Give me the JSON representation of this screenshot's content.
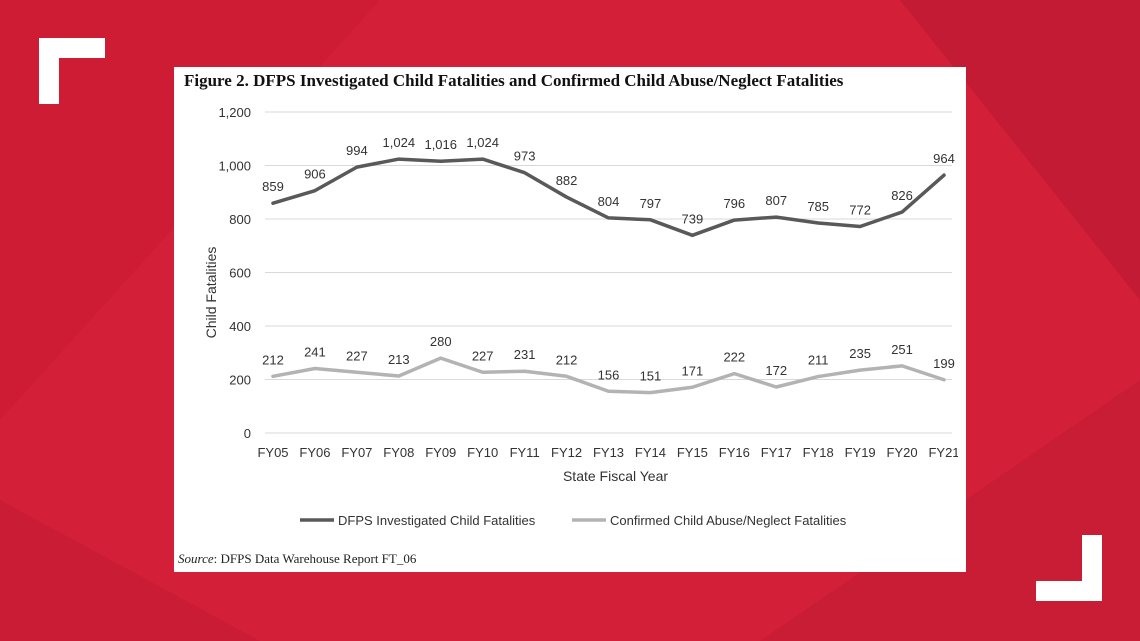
{
  "colors": {
    "background": "#d41f38",
    "panel": "#ffffff",
    "bracket": "#ffffff",
    "series_dark": "#595959",
    "series_light": "#b3b3b3",
    "grid": "#d9d9d9"
  },
  "figure": {
    "title": "Figure 2. DFPS Investigated Child Fatalities and Confirmed Child Abuse/Neglect Fatalities",
    "source_label": "Source",
    "source_text": ": DFPS Data Warehouse Report FT_06"
  },
  "chart_data": {
    "type": "line",
    "x": [
      "FY05",
      "FY06",
      "FY07",
      "FY08",
      "FY09",
      "FY10",
      "FY11",
      "FY12",
      "FY13",
      "FY14",
      "FY15",
      "FY16",
      "FY17",
      "FY18",
      "FY19",
      "FY20",
      "FY21"
    ],
    "series": [
      {
        "name": "DFPS Investigated Child Fatalities",
        "values": [
          859,
          906,
          994,
          1024,
          1016,
          1024,
          973,
          882,
          804,
          797,
          739,
          796,
          807,
          785,
          772,
          826,
          964
        ],
        "labels": [
          "859",
          "906",
          "994",
          "1,024",
          "1,016",
          "1,024",
          "973",
          "882",
          "804",
          "797",
          "739",
          "796",
          "807",
          "785",
          "772",
          "826",
          "964"
        ]
      },
      {
        "name": "Confirmed Child Abuse/Neglect Fatalities",
        "values": [
          212,
          241,
          227,
          213,
          280,
          227,
          231,
          212,
          156,
          151,
          171,
          222,
          172,
          211,
          235,
          251,
          199
        ],
        "labels": [
          "212",
          "241",
          "227",
          "213",
          "280",
          "227",
          "231",
          "212",
          "156",
          "151",
          "171",
          "222",
          "172",
          "211",
          "235",
          "251",
          "199"
        ]
      }
    ],
    "xlabel": "State Fiscal Year",
    "ylabel": "Child Fatalities",
    "ylim": [
      0,
      1200
    ],
    "yticks": [
      0,
      200,
      400,
      600,
      800,
      1000,
      1200
    ],
    "ytick_labels": [
      "0",
      "200",
      "400",
      "600",
      "800",
      "1,000",
      "1,200"
    ],
    "grid": true,
    "legend_position": "bottom"
  }
}
